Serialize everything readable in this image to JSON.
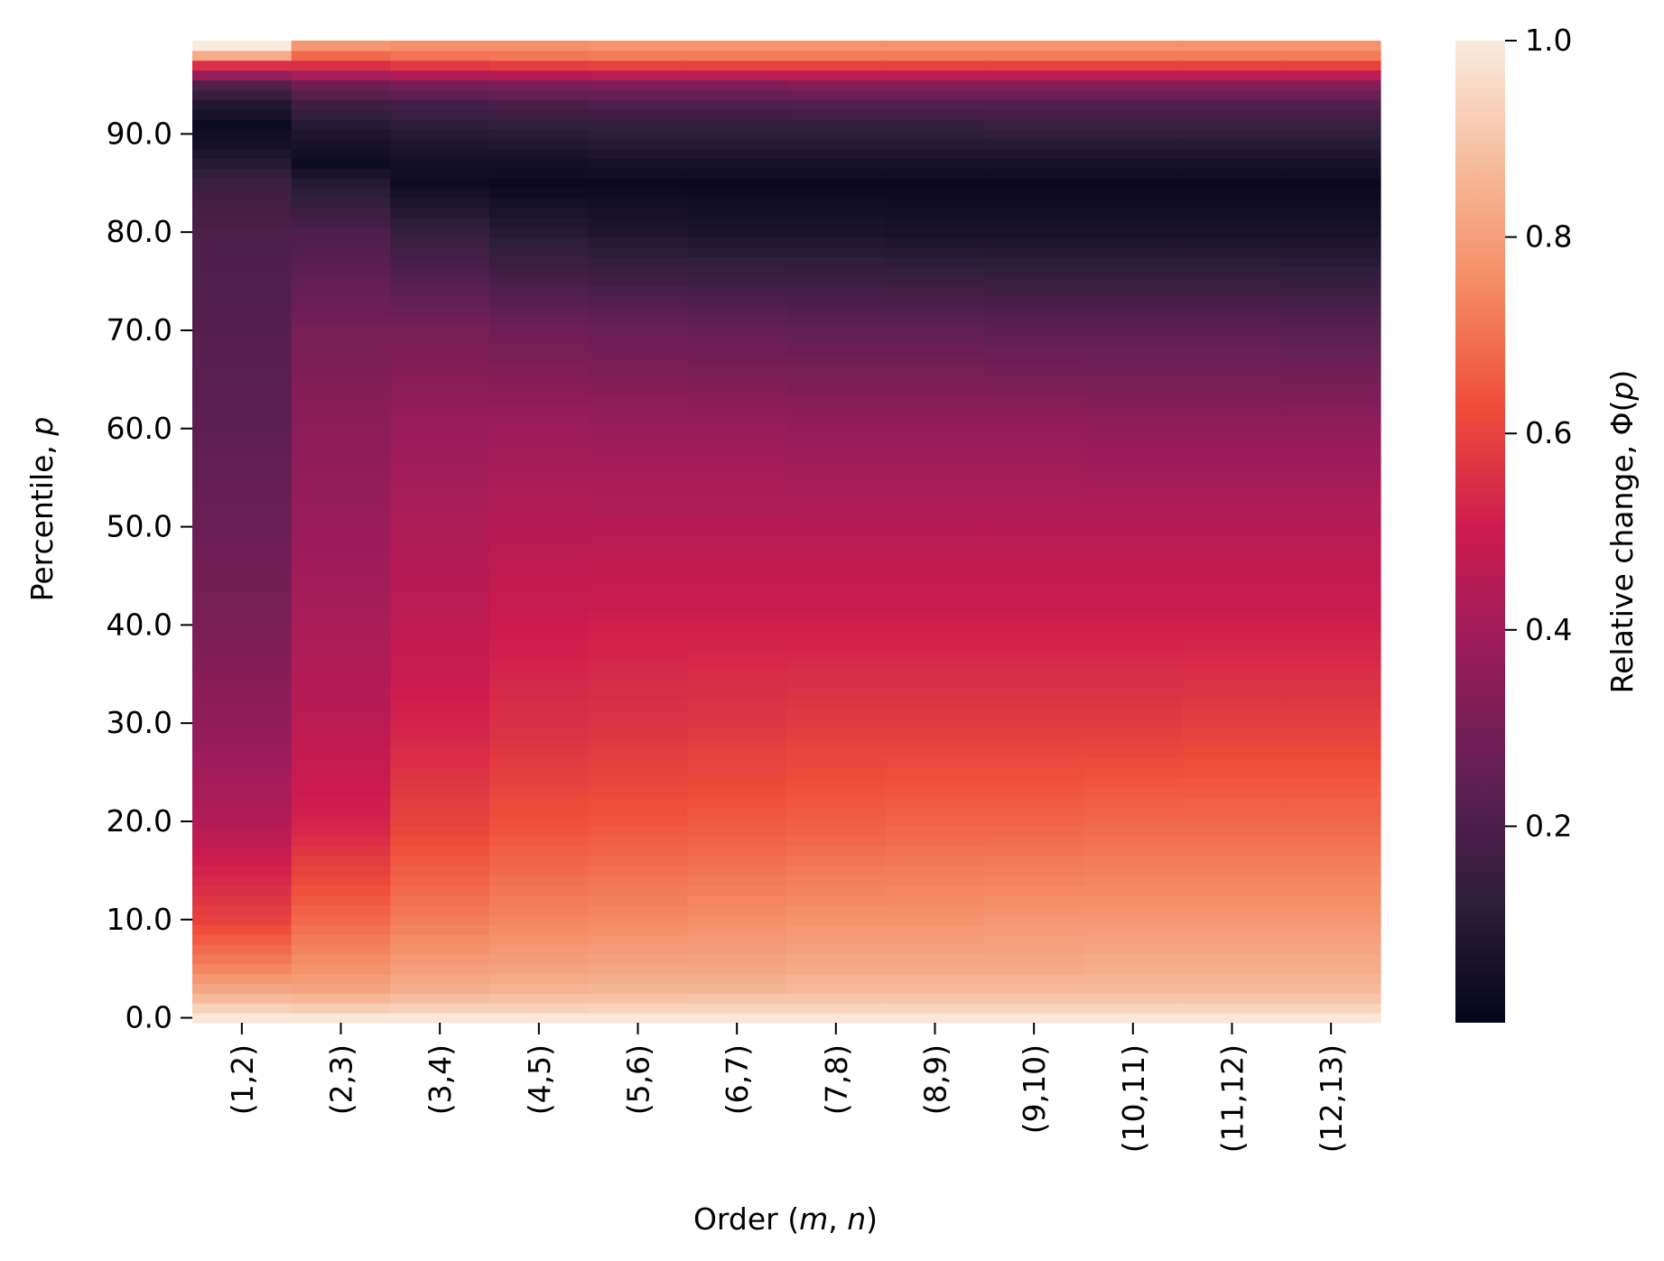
{
  "chart_data": {
    "type": "heatmap",
    "title": "",
    "xlabel": "Order (m, n)",
    "xlabel_parts": {
      "prefix": "Order (",
      "m": "m",
      "sep": ", ",
      "n": "n",
      "suffix": ")"
    },
    "ylabel": "Percentile, p",
    "ylabel_parts": {
      "prefix": "Percentile, ",
      "p": "p"
    },
    "colorbar_label": "Relative change, Φ(p)",
    "colorbar_label_parts": {
      "prefix": "Relative change, Φ(",
      "p": "p",
      "suffix": ")"
    },
    "x_categories": [
      "(1,2)",
      "(2,3)",
      "(3,4)",
      "(4,5)",
      "(5,6)",
      "(6,7)",
      "(7,8)",
      "(8,9)",
      "(9,10)",
      "(10,11)",
      "(11,12)",
      "(12,13)"
    ],
    "y_ticks": [
      "0.0",
      "10.0",
      "20.0",
      "30.0",
      "40.0",
      "50.0",
      "60.0",
      "70.0",
      "80.0",
      "90.0"
    ],
    "y_tick_values": [
      0,
      10,
      20,
      30,
      40,
      50,
      60,
      70,
      80,
      90
    ],
    "y_range": [
      0,
      99
    ],
    "colorbar_ticks": [
      "0.2",
      "0.4",
      "0.6",
      "0.8",
      "1.0"
    ],
    "colorbar_tick_values": [
      0.2,
      0.4,
      0.6,
      0.8,
      1.0
    ],
    "colorbar_range": [
      0.0,
      1.0
    ],
    "colormap": "rocket",
    "colormap_stops": [
      "#03051a",
      "#2e1e3c",
      "#611f53",
      "#971c5b",
      "#cb1b4f",
      "#ef4c3a",
      "#f48b64",
      "#f6bc9d",
      "#faebdd"
    ],
    "value_profiles": {
      "p": [
        0,
        1,
        2,
        3,
        5,
        10,
        20,
        30,
        40,
        50,
        60,
        70,
        80,
        85,
        87,
        89,
        91,
        93,
        95,
        97,
        98,
        99
      ],
      "series": [
        {
          "name": "(1,2)",
          "values": [
            0.99,
            0.93,
            0.87,
            0.82,
            0.74,
            0.6,
            0.44,
            0.36,
            0.31,
            0.27,
            0.24,
            0.22,
            0.2,
            0.16,
            0.1,
            0.05,
            0.03,
            0.09,
            0.21,
            0.55,
            0.83,
            1.0
          ]
        },
        {
          "name": "(2,3)",
          "values": [
            0.99,
            0.92,
            0.86,
            0.81,
            0.77,
            0.68,
            0.52,
            0.46,
            0.42,
            0.38,
            0.35,
            0.3,
            0.2,
            0.1,
            0.03,
            0.06,
            0.1,
            0.17,
            0.28,
            0.55,
            0.68,
            0.78
          ]
        },
        {
          "name": "(3,4)",
          "values": [
            0.99,
            0.93,
            0.88,
            0.84,
            0.8,
            0.72,
            0.6,
            0.52,
            0.47,
            0.43,
            0.38,
            0.3,
            0.14,
            0.03,
            0.05,
            0.08,
            0.12,
            0.18,
            0.3,
            0.58,
            0.7,
            0.76
          ]
        },
        {
          "name": "(4,5)",
          "values": [
            0.99,
            0.93,
            0.89,
            0.85,
            0.81,
            0.74,
            0.63,
            0.55,
            0.5,
            0.45,
            0.39,
            0.28,
            0.1,
            0.02,
            0.05,
            0.09,
            0.13,
            0.19,
            0.31,
            0.59,
            0.71,
            0.76
          ]
        },
        {
          "name": "(5,6)",
          "values": [
            0.99,
            0.94,
            0.89,
            0.86,
            0.82,
            0.75,
            0.64,
            0.56,
            0.51,
            0.45,
            0.38,
            0.27,
            0.08,
            0.02,
            0.06,
            0.1,
            0.14,
            0.2,
            0.32,
            0.6,
            0.72,
            0.77
          ]
        },
        {
          "name": "(6,7)",
          "values": [
            0.99,
            0.94,
            0.9,
            0.86,
            0.82,
            0.76,
            0.65,
            0.57,
            0.51,
            0.45,
            0.38,
            0.26,
            0.07,
            0.02,
            0.06,
            0.1,
            0.14,
            0.2,
            0.32,
            0.6,
            0.72,
            0.77
          ]
        },
        {
          "name": "(7,8)",
          "values": [
            0.99,
            0.94,
            0.9,
            0.87,
            0.83,
            0.77,
            0.66,
            0.58,
            0.51,
            0.45,
            0.37,
            0.25,
            0.07,
            0.02,
            0.06,
            0.1,
            0.14,
            0.21,
            0.33,
            0.6,
            0.72,
            0.77
          ]
        },
        {
          "name": "(8,9)",
          "values": [
            0.99,
            0.94,
            0.9,
            0.87,
            0.83,
            0.77,
            0.67,
            0.58,
            0.51,
            0.45,
            0.37,
            0.25,
            0.06,
            0.02,
            0.06,
            0.1,
            0.14,
            0.21,
            0.33,
            0.6,
            0.72,
            0.77
          ]
        },
        {
          "name": "(9,10)",
          "values": [
            0.99,
            0.94,
            0.9,
            0.87,
            0.83,
            0.78,
            0.67,
            0.58,
            0.51,
            0.45,
            0.37,
            0.24,
            0.06,
            0.02,
            0.06,
            0.1,
            0.15,
            0.21,
            0.33,
            0.6,
            0.72,
            0.77
          ]
        },
        {
          "name": "(10,11)",
          "values": [
            0.99,
            0.94,
            0.9,
            0.87,
            0.84,
            0.78,
            0.68,
            0.58,
            0.51,
            0.45,
            0.36,
            0.24,
            0.06,
            0.02,
            0.06,
            0.1,
            0.15,
            0.21,
            0.33,
            0.6,
            0.72,
            0.77
          ]
        },
        {
          "name": "(11,12)",
          "values": [
            0.99,
            0.94,
            0.9,
            0.87,
            0.84,
            0.78,
            0.68,
            0.59,
            0.51,
            0.45,
            0.36,
            0.24,
            0.06,
            0.02,
            0.06,
            0.1,
            0.15,
            0.21,
            0.33,
            0.6,
            0.72,
            0.77
          ]
        },
        {
          "name": "(12,13)",
          "values": [
            0.99,
            0.94,
            0.9,
            0.87,
            0.84,
            0.78,
            0.68,
            0.59,
            0.51,
            0.45,
            0.36,
            0.23,
            0.06,
            0.02,
            0.06,
            0.1,
            0.15,
            0.21,
            0.33,
            0.6,
            0.72,
            0.77
          ]
        }
      ]
    },
    "grid": false,
    "legend": "colorbar-right"
  }
}
